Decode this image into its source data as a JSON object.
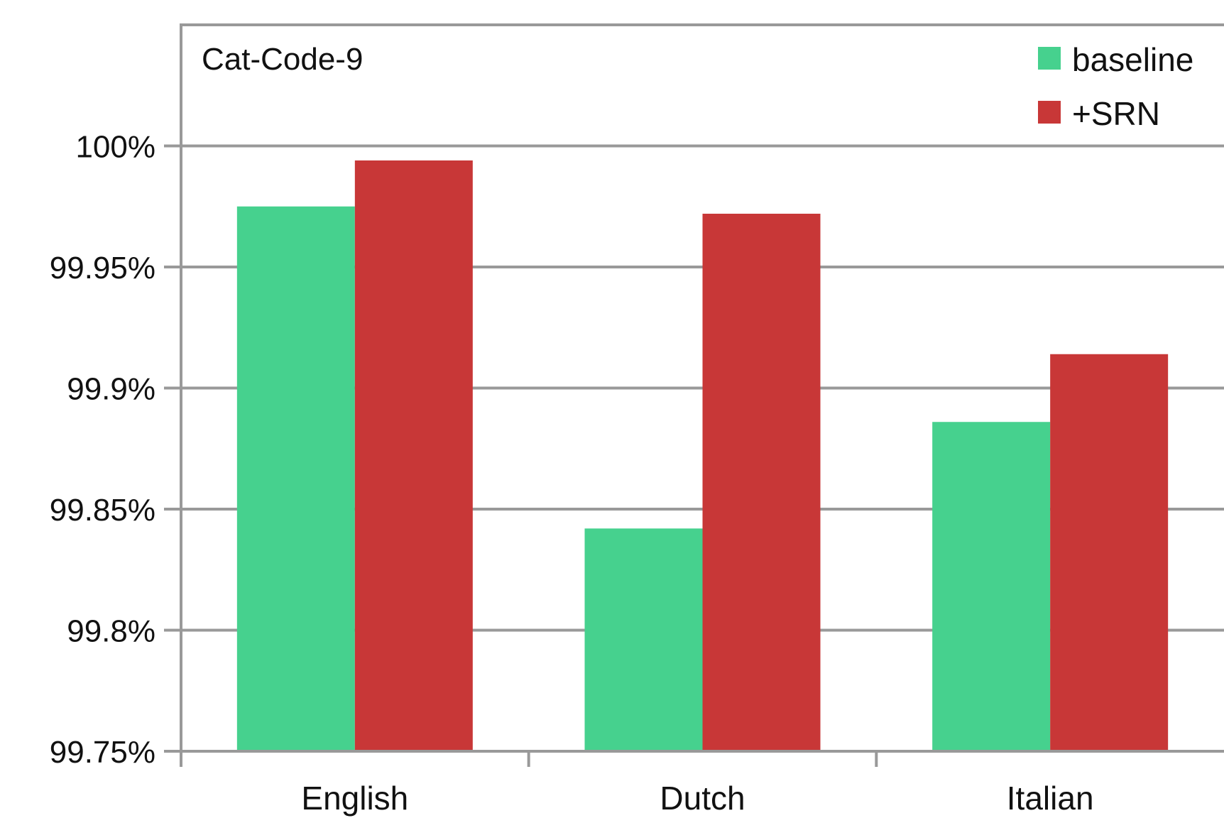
{
  "chart_data": {
    "type": "bar",
    "title": "Cat-Code-9",
    "xlabel": "",
    "ylabel": "",
    "categories": [
      "English",
      "Dutch",
      "Italian"
    ],
    "series": [
      {
        "name": "baseline",
        "values": [
          99.975,
          99.842,
          99.886
        ],
        "color": "#46d18e"
      },
      {
        "name": "+SRN",
        "values": [
          99.994,
          99.972,
          99.914
        ],
        "color": "#c83737"
      }
    ],
    "ylim": [
      99.75,
      100.05
    ],
    "yticks": [
      99.75,
      99.8,
      99.85,
      99.9,
      99.95,
      100
    ],
    "ytick_labels": [
      "99.75%",
      "99.8%",
      "99.85%",
      "99.9%",
      "99.95%",
      "100%"
    ],
    "grid": true,
    "legend_position": "top-right",
    "colors": {
      "grid": "#999999",
      "axis": "#999999"
    }
  }
}
